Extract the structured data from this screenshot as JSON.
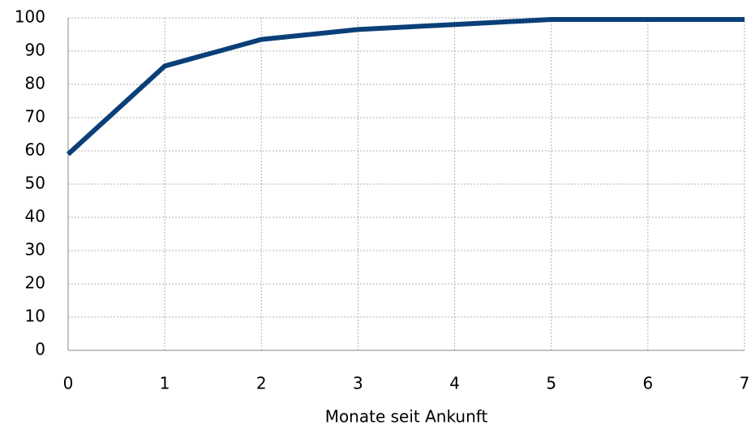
{
  "chart_data": {
    "type": "line",
    "x_label": "Monate seit Ankunft",
    "x": [
      0,
      1,
      2,
      3,
      4,
      5,
      6,
      7
    ],
    "series": [
      {
        "color": "#0b3f78",
        "values": [
          59,
          85.5,
          93.5,
          96.5,
          98,
          99.5,
          99.5,
          99.5
        ]
      }
    ],
    "xlim": [
      0,
      7
    ],
    "xticks": [
      0,
      1,
      2,
      3,
      4,
      5,
      6,
      7
    ],
    "ylim": [
      0,
      100
    ],
    "yticks": [
      0,
      10,
      20,
      30,
      40,
      50,
      60,
      70,
      80,
      90,
      100
    ],
    "grid": true
  }
}
